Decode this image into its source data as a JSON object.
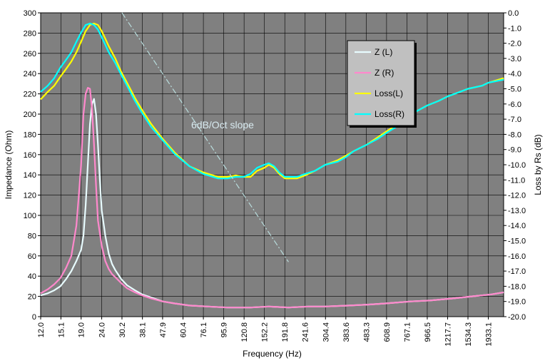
{
  "chart_data": {
    "type": "line",
    "xlabel": "Frequency (Hz)",
    "ylabel_left": "Impedance (Ohm)",
    "ylabel_right": "Loss by Rs (dB)",
    "annotation": "6dB/Oct slope",
    "x_scale": "log",
    "x_ticks": [
      "12.0",
      "15.1",
      "19.0",
      "24.0",
      "30.2",
      "38.1",
      "47.9",
      "60.4",
      "76.1",
      "95.9",
      "120.8",
      "152.2",
      "191.8",
      "241.6",
      "304.4",
      "383.6",
      "483.3",
      "608.9",
      "767.1",
      "966.5",
      "1217.7",
      "1534.3",
      "1933.1"
    ],
    "x_range": [
      12.0,
      2300
    ],
    "y_left_ticks": [
      "0",
      "20",
      "40",
      "60",
      "80",
      "100",
      "120",
      "140",
      "160",
      "180",
      "200",
      "220",
      "240",
      "260",
      "280",
      "300"
    ],
    "y_left_range": [
      0,
      300
    ],
    "y_right_ticks": [
      "0.0",
      "-1.0",
      "-2.0",
      "-3.0",
      "-4.0",
      "-5.0",
      "-6.0",
      "-7.0",
      "-8.0",
      "-9.0",
      "-10.0",
      "-11.0",
      "-12.0",
      "-13.0",
      "-14.0",
      "-15.0",
      "-16.0",
      "-17.0",
      "-18.0",
      "-19.0",
      "-20.0"
    ],
    "y_right_range": [
      -20,
      0
    ],
    "grid": true,
    "legend_position": "top-right",
    "colors": {
      "plot_bg": "#808080",
      "grid": "#000000",
      "Z (L)": "#e8fcff",
      "Z (R)": "#ff88cc",
      "Loss(L)": "#ffff00",
      "Loss(R)": "#00ffff",
      "slope": "#b8dcdc"
    },
    "series": [
      {
        "name": "Z (L)",
        "axis": "left",
        "x": [
          12,
          13,
          14,
          15,
          16,
          17,
          18,
          19,
          19.5,
          20,
          20.5,
          21,
          21.5,
          22,
          22.5,
          23,
          23.5,
          24,
          25,
          26,
          27,
          28,
          30,
          32,
          35,
          38,
          42,
          48,
          55,
          65,
          80,
          100,
          130,
          160,
          200,
          250,
          300,
          400,
          500,
          600,
          800,
          1000,
          1300,
          1600,
          2000,
          2300
        ],
        "y": [
          21,
          23,
          26,
          30,
          37,
          45,
          55,
          66,
          80,
          110,
          150,
          190,
          210,
          215,
          200,
          170,
          135,
          105,
          80,
          62,
          52,
          46,
          37,
          31,
          26,
          22,
          19,
          15,
          13,
          11,
          10,
          9,
          9,
          10,
          9,
          10,
          10,
          11,
          12,
          13,
          15,
          16,
          18,
          20,
          22,
          24
        ]
      },
      {
        "name": "Z (R)",
        "axis": "left",
        "x": [
          12,
          13,
          14,
          15,
          16,
          17,
          17.5,
          18,
          18.5,
          19,
          19.5,
          20,
          20.5,
          21,
          21.5,
          22,
          22.5,
          23,
          24,
          25,
          26,
          27,
          28,
          30,
          32,
          35,
          38,
          42,
          48,
          55,
          65,
          80,
          100,
          130,
          160,
          200,
          250,
          300,
          400,
          500,
          600,
          800,
          1000,
          1300,
          1600,
          2000,
          2300
        ],
        "y": [
          23,
          27,
          32,
          38,
          48,
          60,
          75,
          90,
          120,
          150,
          200,
          220,
          226,
          225,
          205,
          170,
          130,
          95,
          70,
          55,
          47,
          42,
          39,
          33,
          28,
          24,
          21,
          18,
          15,
          13,
          11,
          10,
          9,
          9,
          10,
          9,
          10,
          10,
          11,
          12,
          13,
          15,
          16,
          18,
          20,
          22,
          24
        ]
      },
      {
        "name": "Loss(L)",
        "axis": "right",
        "x": [
          12,
          13,
          14,
          15,
          16,
          17,
          18,
          19,
          20,
          21,
          22,
          23,
          24,
          25,
          26,
          28,
          30,
          32,
          35,
          38,
          42,
          48,
          55,
          65,
          76,
          90,
          100,
          110,
          120,
          130,
          140,
          152,
          160,
          170,
          180,
          192,
          200,
          220,
          242,
          270,
          304,
          350,
          384,
          420,
          483,
          550,
          609,
          700,
          767,
          850,
          966,
          1100,
          1218,
          1400,
          1534,
          1800,
          1933,
          2300
        ],
        "y": [
          -5.7,
          -5.2,
          -4.8,
          -4.2,
          -3.7,
          -3.2,
          -2.6,
          -1.9,
          -1.2,
          -0.8,
          -0.7,
          -0.8,
          -1.2,
          -1.7,
          -2.2,
          -3.0,
          -3.9,
          -4.6,
          -5.6,
          -6.4,
          -7.3,
          -8.3,
          -9.2,
          -10.1,
          -10.5,
          -10.8,
          -10.8,
          -10.7,
          -10.8,
          -10.8,
          -10.4,
          -10.2,
          -10.0,
          -10.2,
          -10.6,
          -10.9,
          -10.9,
          -10.9,
          -10.7,
          -10.4,
          -10.0,
          -9.7,
          -9.4,
          -9.1,
          -8.7,
          -8.2,
          -7.8,
          -7.3,
          -6.9,
          -6.5,
          -6.1,
          -5.8,
          -5.5,
          -5.2,
          -5.0,
          -4.8,
          -4.6,
          -4.3
        ]
      },
      {
        "name": "Loss(R)",
        "axis": "right",
        "x": [
          12,
          13,
          14,
          15,
          16,
          17,
          18,
          19,
          20,
          21,
          22,
          23,
          24,
          25,
          26,
          28,
          30,
          32,
          35,
          38,
          42,
          48,
          55,
          65,
          76,
          90,
          100,
          110,
          120,
          130,
          140,
          152,
          160,
          170,
          180,
          192,
          200,
          220,
          242,
          270,
          304,
          350,
          384,
          420,
          483,
          550,
          609,
          700,
          767,
          850,
          966,
          1100,
          1218,
          1400,
          1534,
          1800,
          1933,
          2300
        ],
        "y": [
          -5.2,
          -4.8,
          -4.3,
          -3.6,
          -3.1,
          -2.6,
          -1.9,
          -1.3,
          -0.8,
          -0.7,
          -0.8,
          -1.1,
          -1.6,
          -2.1,
          -2.6,
          -3.3,
          -4.1,
          -4.8,
          -5.8,
          -6.6,
          -7.5,
          -8.4,
          -9.3,
          -10.1,
          -10.6,
          -10.9,
          -10.9,
          -10.8,
          -10.8,
          -10.6,
          -10.2,
          -10.0,
          -9.9,
          -10.1,
          -10.5,
          -10.8,
          -10.8,
          -10.8,
          -10.6,
          -10.4,
          -10.0,
          -9.8,
          -9.5,
          -9.1,
          -8.7,
          -8.3,
          -7.9,
          -7.4,
          -6.9,
          -6.5,
          -6.1,
          -5.8,
          -5.5,
          -5.2,
          -5.0,
          -4.8,
          -4.6,
          -4.4
        ]
      },
      {
        "name": "",
        "axis": "right",
        "dashed": true,
        "x": [
          30.2,
          200
        ],
        "y": [
          0.0,
          -16.4
        ]
      }
    ]
  }
}
